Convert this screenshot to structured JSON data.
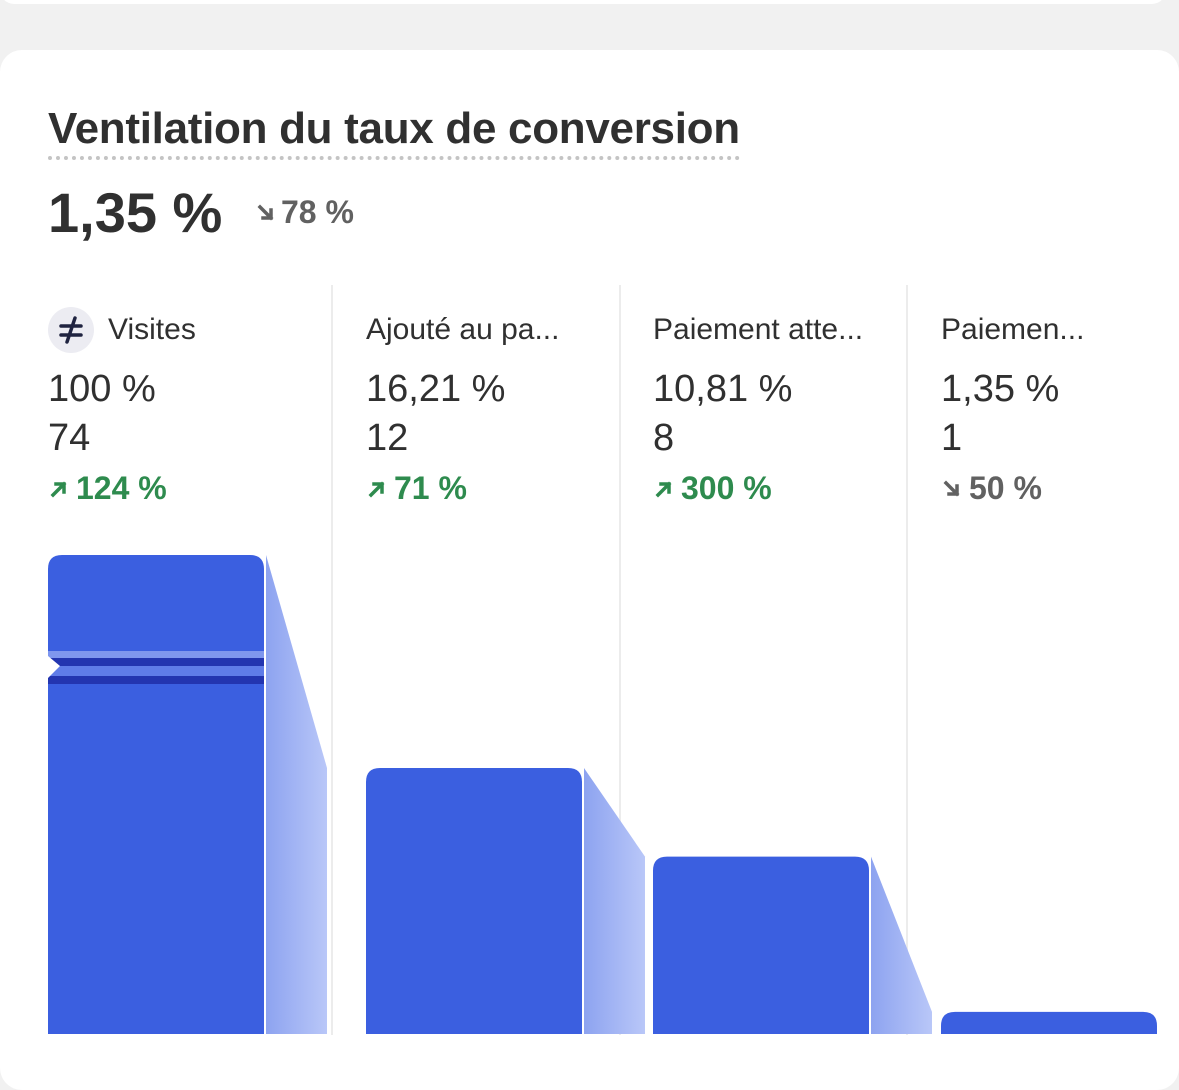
{
  "header": {
    "title": "Ventilation du taux de conversion",
    "rate": "1,35 %",
    "rate_change": "78 %",
    "rate_change_direction": "down"
  },
  "chart_data": {
    "type": "funnel",
    "categories": [
      "Visites",
      "Ajouté au pa...",
      "Paiement atte...",
      "Paiemen..."
    ],
    "values": [
      100,
      16.21,
      10.81,
      1.35
    ],
    "value_labels": [
      "100 %",
      "16,21 %",
      "10,81 %",
      "1,35 %"
    ],
    "counts": [
      74,
      12,
      8,
      1
    ],
    "changes": [
      "124 %",
      "71 %",
      "300 %",
      "50 %"
    ],
    "change_directions": [
      "up",
      "up",
      "up",
      "down"
    ],
    "color": "#3b5fe0"
  }
}
